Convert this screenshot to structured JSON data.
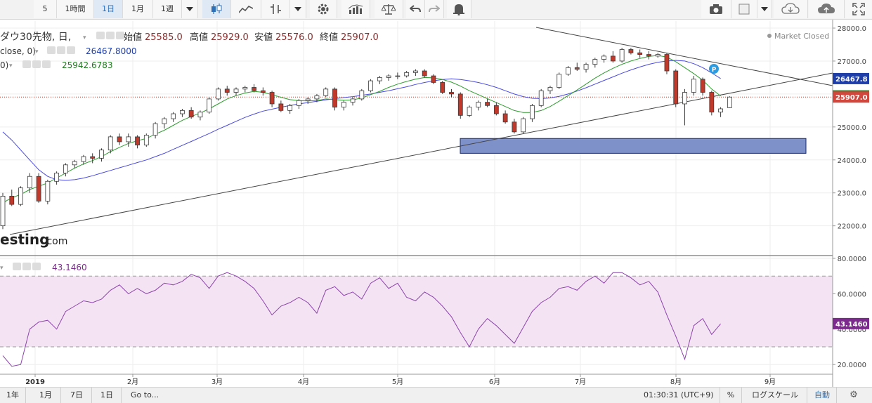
{
  "toolbar": {
    "intervals": [
      "5",
      "1時間",
      "1日",
      "1月",
      "1週"
    ],
    "active_interval": "1日"
  },
  "legend": {
    "main_title": "ダウ30先物, 日,",
    "open_label": "始値",
    "open_value": "25585.0",
    "high_label": "高値",
    "high_value": "25929.0",
    "low_label": "安値",
    "low_value": "25576.0",
    "close_label": "終値",
    "close_value": "25907.0",
    "ma_slow_prefix": "close, 0)",
    "ma_slow_value": "26467.8000",
    "ma_fast_prefix": "0)",
    "ma_fast_value": "25942.6783",
    "rsi_value": "43.1460",
    "market_status": "Market Closed",
    "watermark": "esting",
    "watermark_suffix": ".com"
  },
  "price_axis": {
    "ticks": [
      "28000.0",
      "27000.0",
      "26000.0",
      "25000.0",
      "24000.0",
      "23000.0",
      "22000.0"
    ],
    "tags": [
      {
        "label": "26467.8",
        "value": 26467.8,
        "color": "#1f3ea8"
      },
      {
        "label": "25942.7",
        "value": 25942.7,
        "color": "#1b8a1b"
      },
      {
        "label": "25907.0",
        "value": 25907.0,
        "color": "#d2473d"
      }
    ]
  },
  "rsi_axis": {
    "ticks": [
      "80.0000",
      "60.0000",
      "40.0000",
      "20.0000"
    ],
    "tag": {
      "label": "43.1460",
      "color": "#7d2a8f"
    }
  },
  "time_axis": {
    "labels": [
      "2019",
      "2月",
      "3月",
      "4月",
      "5月",
      "6月",
      "7月",
      "8月",
      "9月"
    ]
  },
  "bottombar": {
    "ranges": [
      "1年",
      "1月",
      "7日",
      "1日"
    ],
    "goto": "Go to...",
    "clock": "01:30:31 (UTC+9)",
    "percent": "%",
    "log": "ログスケール",
    "auto": "自動"
  },
  "colors": {
    "up": "#ffffff",
    "down": "#c0392b",
    "candle_border": "#3a3a3a",
    "ma_fast": "#2e9d2e",
    "ma_slow": "#4a4ae0",
    "rsi": "#8e44ad",
    "rsi_band": "#f3e3f3",
    "support_zone": "#7f91c9",
    "accent": "#2e6fb6"
  },
  "chart_data": {
    "type": "candlestick",
    "candles": [
      [
        22000,
        23000,
        21900,
        22900
      ],
      [
        22900,
        23100,
        22600,
        22650
      ],
      [
        22650,
        23200,
        22600,
        23150
      ],
      [
        23150,
        23600,
        23000,
        23500
      ],
      [
        23500,
        23600,
        22700,
        22750
      ],
      [
        22750,
        23400,
        22650,
        23350
      ],
      [
        23350,
        23650,
        23250,
        23600
      ],
      [
        23600,
        23900,
        23500,
        23850
      ],
      [
        23850,
        24000,
        23750,
        23950
      ],
      [
        23950,
        24150,
        23850,
        24100
      ],
      [
        24100,
        24200,
        23900,
        24050
      ],
      [
        24050,
        24350,
        23950,
        24300
      ],
      [
        24300,
        24750,
        24200,
        24700
      ],
      [
        24700,
        24800,
        24450,
        24550
      ],
      [
        24550,
        24800,
        24400,
        24700
      ],
      [
        24700,
        24750,
        24350,
        24450
      ],
      [
        24450,
        24800,
        24400,
        24750
      ],
      [
        24750,
        25150,
        24650,
        25100
      ],
      [
        25100,
        25300,
        24950,
        25250
      ],
      [
        25250,
        25450,
        25150,
        25400
      ],
      [
        25400,
        25550,
        25300,
        25500
      ],
      [
        25500,
        25600,
        25250,
        25300
      ],
      [
        25300,
        25500,
        25200,
        25450
      ],
      [
        25450,
        25900,
        25400,
        25850
      ],
      [
        25850,
        26200,
        25800,
        26150
      ],
      [
        26150,
        26250,
        25950,
        26050
      ],
      [
        26050,
        26200,
        25950,
        26150
      ],
      [
        26150,
        26250,
        26050,
        26200
      ],
      [
        26200,
        26300,
        26050,
        26100
      ],
      [
        26100,
        26200,
        25950,
        26050
      ],
      [
        26050,
        26100,
        25600,
        25700
      ],
      [
        25700,
        25800,
        25450,
        25500
      ],
      [
        25500,
        25700,
        25400,
        25650
      ],
      [
        25650,
        25850,
        25550,
        25800
      ],
      [
        25800,
        25900,
        25700,
        25850
      ],
      [
        25850,
        26000,
        25750,
        25950
      ],
      [
        25950,
        26200,
        25900,
        26150
      ],
      [
        26150,
        26200,
        25500,
        25600
      ],
      [
        25600,
        25800,
        25500,
        25750
      ],
      [
        25750,
        25900,
        25650,
        25850
      ],
      [
        25850,
        26150,
        25800,
        26100
      ],
      [
        26100,
        26450,
        26050,
        26400
      ],
      [
        26400,
        26550,
        26300,
        26500
      ],
      [
        26500,
        26600,
        26400,
        26550
      ],
      [
        26550,
        26650,
        26450,
        26550
      ],
      [
        26550,
        26700,
        26500,
        26650
      ],
      [
        26650,
        26750,
        26550,
        26700
      ],
      [
        26700,
        26750,
        26500,
        26550
      ],
      [
        26550,
        26600,
        26300,
        26350
      ],
      [
        26350,
        26400,
        26000,
        26050
      ],
      [
        26050,
        26150,
        25900,
        26000
      ],
      [
        26000,
        26050,
        25250,
        25350
      ],
      [
        25350,
        25650,
        25300,
        25600
      ],
      [
        25600,
        25800,
        25500,
        25750
      ],
      [
        25750,
        25850,
        25600,
        25650
      ],
      [
        25650,
        25750,
        25350,
        25400
      ],
      [
        25400,
        25500,
        25100,
        25150
      ],
      [
        25150,
        25250,
        24800,
        24850
      ],
      [
        24850,
        25300,
        24800,
        25250
      ],
      [
        25250,
        25700,
        25150,
        25650
      ],
      [
        25650,
        26150,
        25600,
        26100
      ],
      [
        26100,
        26250,
        26000,
        26200
      ],
      [
        26200,
        26650,
        26150,
        26600
      ],
      [
        26600,
        26850,
        26550,
        26800
      ],
      [
        26800,
        26950,
        26700,
        26750
      ],
      [
        26750,
        26950,
        26650,
        26900
      ],
      [
        26900,
        27100,
        26800,
        27050
      ],
      [
        27050,
        27200,
        26950,
        27150
      ],
      [
        27150,
        27300,
        26950,
        27000
      ],
      [
        27000,
        27400,
        26950,
        27350
      ],
      [
        27350,
        27400,
        27200,
        27250
      ],
      [
        27250,
        27350,
        27100,
        27200
      ],
      [
        27200,
        27300,
        27050,
        27150
      ],
      [
        27150,
        27250,
        27100,
        27200
      ],
      [
        27200,
        27250,
        26600,
        26700
      ],
      [
        26700,
        26750,
        25600,
        25700
      ],
      [
        25700,
        26150,
        25050,
        26050
      ],
      [
        26050,
        26550,
        25950,
        26450
      ],
      [
        26450,
        26500,
        25950,
        26050
      ],
      [
        26050,
        26100,
        25350,
        25450
      ],
      [
        25450,
        25600,
        25300,
        25550
      ],
      [
        25585,
        25929,
        25576,
        25907
      ]
    ],
    "rsi": [
      25,
      19,
      20,
      40,
      44,
      45,
      40,
      50,
      53,
      56,
      55,
      57,
      62,
      65,
      60,
      63,
      60,
      62,
      66,
      65,
      67,
      71,
      69,
      63,
      70,
      72,
      70,
      67,
      63,
      56,
      48,
      53,
      55,
      58,
      55,
      49,
      62,
      64,
      59,
      61,
      57,
      66,
      69,
      63,
      66,
      58,
      56,
      61,
      58,
      53,
      47,
      38,
      30,
      40,
      46,
      42,
      37,
      32,
      41,
      50,
      55,
      58,
      63,
      64,
      62,
      67,
      70,
      66,
      72,
      72,
      69,
      65,
      67,
      61,
      48,
      36,
      23,
      42,
      46,
      37,
      43
    ],
    "ma_fast": [
      22700,
      22850,
      22950,
      23100,
      23200,
      23300,
      23450,
      23600,
      23750,
      23880,
      23980,
      24100,
      24250,
      24380,
      24500,
      24580,
      24650,
      24780,
      24900,
      25050,
      25200,
      25320,
      25420,
      25550,
      25700,
      25850,
      25950,
      26030,
      26080,
      26050,
      25980,
      25900,
      25830,
      25800,
      25790,
      25800,
      25850,
      25830,
      25810,
      25820,
      25880,
      25980,
      26080,
      26200,
      26300,
      26380,
      26450,
      26500,
      26490,
      26440,
      26360,
      26240,
      26100,
      25980,
      25860,
      25740,
      25620,
      25500,
      25440,
      25440,
      25500,
      25620,
      25780,
      25950,
      26120,
      26300,
      26480,
      26640,
      26780,
      26900,
      27000,
      27080,
      27140,
      27170,
      27120,
      26980,
      26800,
      26620,
      26420,
      26150,
      25942
    ],
    "ma_slow": [
      24850,
      24600,
      24300,
      24000,
      23700,
      23500,
      23400,
      23380,
      23400,
      23450,
      23520,
      23600,
      23680,
      23760,
      23840,
      23920,
      24000,
      24100,
      24200,
      24320,
      24440,
      24560,
      24680,
      24800,
      24930,
      25050,
      25170,
      25290,
      25390,
      25480,
      25540,
      25600,
      25650,
      25700,
      25740,
      25780,
      25820,
      25860,
      25890,
      25920,
      25960,
      26000,
      26050,
      26100,
      26160,
      26220,
      26290,
      26350,
      26400,
      26440,
      26460,
      26440,
      26400,
      26350,
      26280,
      26200,
      26100,
      26000,
      25920,
      25870,
      25860,
      25880,
      25930,
      26000,
      26090,
      26190,
      26300,
      26410,
      26520,
      26630,
      26730,
      26820,
      26900,
      26960,
      27000,
      27020,
      27000,
      26920,
      26800,
      26640,
      26467.8
    ]
  }
}
